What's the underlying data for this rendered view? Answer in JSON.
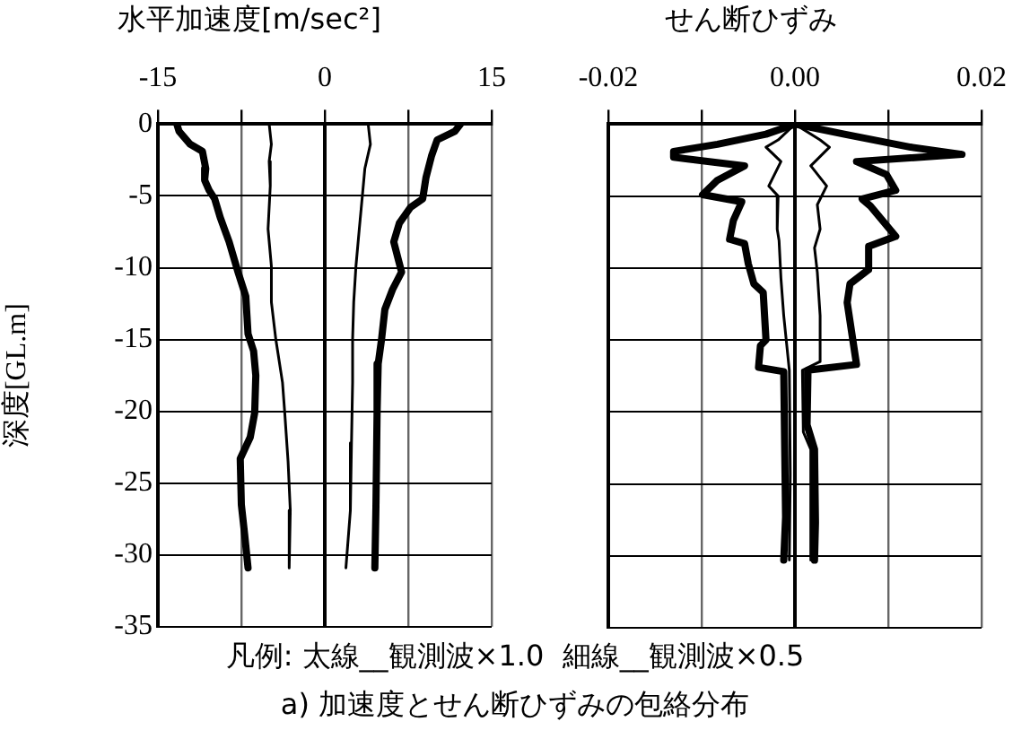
{
  "chart_data": [
    {
      "type": "line",
      "title": "水平加速度[m/sec²]",
      "ylabel": "深度[GL.m]",
      "xlim": [
        -15,
        15
      ],
      "xticks": [
        -15,
        {
          "value": -7.5,
          "label": null
        },
        0,
        {
          "value": 7.5,
          "label": null
        },
        15
      ],
      "ylim": [
        -35,
        0
      ],
      "yticks": [
        -35,
        -30,
        -25,
        -20,
        -15,
        -10,
        -5,
        0
      ],
      "grid": true,
      "marker": "none",
      "line_style": "solid",
      "ref_lines": [
        {
          "axis": "x",
          "value": 0
        }
      ],
      "annotations": [
        "凡例: 太線__観測波×1.0  細線__観測波×0.5",
        "a) 加速度とせん断ひずみの包絡分布"
      ],
      "series": [
        {
          "color": "#000000",
          "x": [
            -13.3,
            -13.1,
            -12.1,
            -11.0,
            -10.7,
            -10.8,
            -10.4,
            -9.9,
            -9.4,
            -8.6,
            -7.8,
            -7.1,
            -7.0,
            -6.9,
            -6.4,
            -6.2,
            -6.3,
            -6.7,
            -7.6,
            -7.5,
            -7.2,
            -6.9
          ],
          "values": [
            0,
            -0.5,
            -1.4,
            -1.9,
            -3.1,
            -3.9,
            -4.6,
            -5.2,
            -6.5,
            -8.2,
            -10.3,
            -12,
            -13.3,
            -14.6,
            -15.8,
            -17.5,
            -20.1,
            -21.8,
            -23.3,
            -26.5,
            -28.6,
            -30.9
          ]
        },
        {
          "color": "#000000",
          "x": [
            12.2,
            11.7,
            10.1,
            9.6,
            9.1,
            8.8,
            7.7,
            6.7,
            6.2,
            6.6,
            6.9,
            6.1,
            5.4,
            5.1,
            4.8,
            4.7,
            4.6,
            4.5
          ],
          "values": [
            0,
            -0.5,
            -1.1,
            -2.2,
            -3.7,
            -5.2,
            -5.8,
            -6.9,
            -8.2,
            -9.4,
            -10.3,
            -11.5,
            -12.9,
            -15,
            -16.7,
            -20.1,
            -26.5,
            -30.9
          ]
        },
        {
          "color": "#000000",
          "x": [
            -5.0,
            -4.8,
            -5.0,
            -4.9,
            -5.1,
            -4.8,
            -4.8,
            -4.4,
            -3.8,
            -3.6,
            -3.3,
            -3.1,
            -3.2
          ],
          "values": [
            0,
            -1.4,
            -2.6,
            -4.3,
            -7.3,
            -9.9,
            -12.4,
            -15,
            -18,
            -20.1,
            -23.5,
            -26.9,
            -30.9
          ]
        },
        {
          "color": "#000000",
          "x": [
            3.9,
            4.1,
            3.6,
            3.4,
            3.1,
            2.8,
            2.6,
            2.5,
            2.5,
            2.4,
            2.3,
            1.9
          ],
          "values": [
            0,
            -1.4,
            -3.1,
            -4.8,
            -7.3,
            -9.9,
            -12.4,
            -15,
            -18,
            -22.2,
            -26.9,
            -30.9
          ]
        }
      ]
    },
    {
      "type": "line",
      "title": "せん断ひずみ",
      "xlim": [
        -0.02,
        0.02
      ],
      "xticks": [
        -0.02,
        {
          "value": -0.01,
          "label": null
        },
        {
          "value": 0,
          "label": "0.00"
        },
        {
          "value": 0.01,
          "label": null
        },
        0.02
      ],
      "ylim": [
        -35,
        0
      ],
      "yticks": [
        -35,
        -30,
        -25,
        -20,
        -15,
        -10,
        -5,
        0
      ],
      "tick_labels": "x",
      "grid": true,
      "marker": "none",
      "line_style": "solid",
      "ref_lines": [
        {
          "axis": "x",
          "value": 0
        }
      ],
      "series": [
        {
          "color": "#000000",
          "x": [
            0,
            -0.0031,
            -0.0083,
            -0.013,
            -0.013,
            -0.0054,
            -0.0083,
            -0.0099,
            -0.0057,
            -0.0066,
            -0.007,
            -0.0054,
            -0.005,
            -0.0044,
            -0.0034,
            -0.0031,
            -0.0037,
            -0.0039,
            -0.0012,
            -0.001,
            -0.0012
          ],
          "values": [
            0,
            -0.7,
            -1.4,
            -1.9,
            -2.3,
            -2.9,
            -3.9,
            -4.9,
            -5.4,
            -6.7,
            -8.0,
            -8.3,
            -9.7,
            -11.1,
            -11.7,
            -15.0,
            -15.4,
            -16.9,
            -17.2,
            -27.3,
            -30.3
          ]
        },
        {
          "color": "#000000",
          "x": [
            0,
            0.0053,
            0.0124,
            0.0179,
            0.0066,
            0.0098,
            0.0108,
            0.0072,
            0.0081,
            0.0108,
            0.0079,
            0.0079,
            0.0059,
            0.0056,
            0.0066,
            0.0014,
            0.0013,
            0.0021,
            0.0022,
            0.0021
          ],
          "values": [
            0,
            -0.7,
            -1.6,
            -2.1,
            -2.6,
            -3.5,
            -4.6,
            -5.2,
            -5.7,
            -7.8,
            -8.5,
            -10.1,
            -11.1,
            -12.4,
            -16.7,
            -17.1,
            -20.9,
            -22.6,
            -27.7,
            -30.3
          ]
        },
        {
          "color": "#000000",
          "x": [
            0,
            -0.0018,
            -0.0031,
            -0.0015,
            -0.0028,
            -0.0018,
            -0.0019,
            -0.0017,
            -0.0015,
            -0.0012,
            -0.0006,
            -0.0005,
            -0.0006
          ],
          "values": [
            0,
            -1.1,
            -1.6,
            -2.6,
            -4.3,
            -5,
            -7.3,
            -8.1,
            -10.7,
            -13.3,
            -17.1,
            -24.3,
            -30.3
          ]
        },
        {
          "color": "#000000",
          "x": [
            0,
            0.0027,
            0.0037,
            0.0017,
            0.0034,
            0.0024,
            0.0027,
            0.0021,
            0.0024,
            0.0027,
            0.0027,
            0.0008,
            0.0009,
            0.0017,
            0.0017
          ],
          "values": [
            0,
            -1.1,
            -1.6,
            -2.9,
            -4.3,
            -5.6,
            -7.3,
            -8.6,
            -10.3,
            -13.3,
            -16.5,
            -17.1,
            -21.4,
            -22.6,
            -30.3
          ]
        }
      ]
    }
  ]
}
